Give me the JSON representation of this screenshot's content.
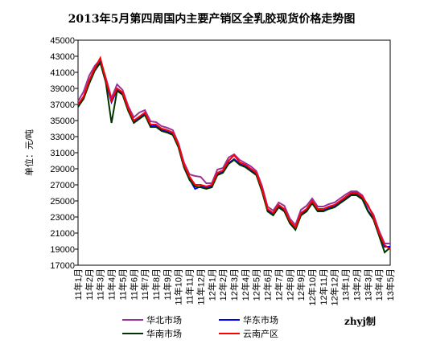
{
  "chart_data": {
    "type": "line",
    "title": "2013年5月第四周国内主要产销区全乳胶现货价格走势图",
    "y_label": "单位：元/吨",
    "note": "zhyj制",
    "categories": [
      "11年1月",
      null,
      "11年2月",
      null,
      "11年3月",
      null,
      "11年4月",
      null,
      "11年5月",
      null,
      "11年6月",
      null,
      "11年7月",
      null,
      "11年8月",
      null,
      "11年9月",
      null,
      "11年10月",
      null,
      "11年11月",
      null,
      "11年12月",
      null,
      "12年1月",
      null,
      "12年2月",
      null,
      "12年3月",
      null,
      "12年4月",
      null,
      "12年5月",
      null,
      "12年6月",
      null,
      "12年7月",
      null,
      "12年8月",
      null,
      "12年9月",
      null,
      "12年10月",
      null,
      "12年11月",
      null,
      "12年12月",
      null,
      "13年1月",
      null,
      "13年2月",
      null,
      "13年3月",
      null,
      "13年4月",
      null,
      "13年5月"
    ],
    "ylim": [
      17000,
      45000
    ],
    "yticks": [
      17000,
      19000,
      21000,
      23000,
      25000,
      27000,
      29000,
      31000,
      33000,
      35000,
      37000,
      39000,
      41000,
      43000,
      45000
    ],
    "grid": false,
    "series": [
      {
        "name": "华北市场",
        "color": "#993399",
        "values": [
          37400,
          38600,
          40600,
          41800,
          42600,
          40300,
          37800,
          39500,
          38800,
          36800,
          35400,
          36000,
          36300,
          34900,
          34800,
          34300,
          34100,
          33800,
          32200,
          29800,
          28300,
          28100,
          28000,
          27200,
          27200,
          28900,
          29100,
          30400,
          30800,
          30100,
          29700,
          29300,
          28700,
          26900,
          24300,
          23800,
          24800,
          24400,
          22800,
          22000,
          23900,
          24400,
          25300,
          24300,
          24300,
          24600,
          24800,
          25300,
          25800,
          26200,
          26200,
          25700,
          24300,
          23300,
          21300,
          19700,
          19700
        ]
      },
      {
        "name": "华东市场",
        "color": "#0000ff",
        "values": [
          36800,
          37800,
          39800,
          41300,
          42300,
          39800,
          37300,
          38800,
          38300,
          36300,
          34800,
          35300,
          35800,
          34300,
          34300,
          33800,
          33600,
          33300,
          31800,
          29300,
          27700,
          26500,
          26800,
          26600,
          26800,
          28300,
          28600,
          29700,
          30200,
          29600,
          29300,
          28800,
          28300,
          26300,
          23800,
          23300,
          24300,
          23800,
          22300,
          21500,
          23300,
          23800,
          24800,
          23800,
          23800,
          24100,
          24300,
          24800,
          25300,
          25800,
          25800,
          25300,
          23800,
          22800,
          20800,
          19300,
          19300
        ]
      },
      {
        "name": "华南市场",
        "color": "#003300",
        "values": [
          36700,
          37700,
          39600,
          41200,
          42200,
          39700,
          34700,
          38700,
          38200,
          36200,
          34700,
          35200,
          35700,
          34200,
          34200,
          33700,
          33500,
          33200,
          31700,
          29200,
          27600,
          26800,
          26700,
          26500,
          26700,
          28200,
          28500,
          29600,
          30100,
          29500,
          29200,
          28700,
          28200,
          26200,
          23700,
          23200,
          24200,
          23700,
          22200,
          21400,
          23200,
          23700,
          24700,
          23700,
          23700,
          24000,
          24200,
          24700,
          25200,
          25700,
          25700,
          25200,
          23700,
          22700,
          20700,
          18600,
          19200
        ]
      },
      {
        "name": "云南产区",
        "color": "#ff0000",
        "values": [
          37000,
          38000,
          40000,
          41500,
          42800,
          40000,
          37500,
          39000,
          38500,
          36500,
          35000,
          35500,
          36000,
          34500,
          34500,
          34000,
          33800,
          33500,
          32000,
          29500,
          28000,
          27000,
          27000,
          26800,
          27000,
          28500,
          28800,
          30000,
          30700,
          29800,
          29500,
          29000,
          28500,
          26500,
          24000,
          23500,
          24500,
          24000,
          22500,
          21700,
          23500,
          24000,
          25000,
          24000,
          24000,
          24300,
          24500,
          25000,
          25500,
          26000,
          26000,
          25500,
          24500,
          23000,
          21000,
          19500,
          19000
        ]
      }
    ]
  }
}
